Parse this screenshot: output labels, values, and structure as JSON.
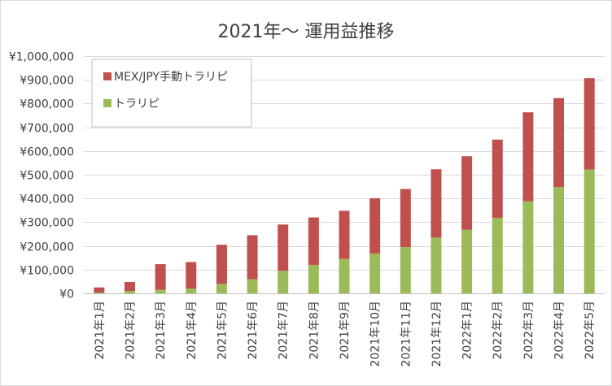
{
  "chart_data": {
    "type": "bar",
    "stacked": true,
    "title": "2021年～ 運用益推移",
    "xlabel": "",
    "ylabel": "",
    "ylim": [
      0,
      1000000
    ],
    "y_ticks": [
      0,
      100000,
      200000,
      300000,
      400000,
      500000,
      600000,
      700000,
      800000,
      900000,
      1000000
    ],
    "y_tick_labels": [
      "¥0",
      "¥100,000",
      "¥200,000",
      "¥300,000",
      "¥400,000",
      "¥500,000",
      "¥600,000",
      "¥700,000",
      "¥800,000",
      "¥900,000",
      "¥1,000,000"
    ],
    "categories": [
      "2021年1月",
      "2021年2月",
      "2021年3月",
      "2021年4月",
      "2021年5月",
      "2021年6月",
      "2021年7月",
      "2021年8月",
      "2021年9月",
      "2021年10月",
      "2021年11月",
      "2021年12月",
      "2022年1月",
      "2022年2月",
      "2022年3月",
      "2022年4月",
      "2022年5月"
    ],
    "series": [
      {
        "name": "トラリピ",
        "color": "#9bbb59",
        "values": [
          3000,
          10000,
          15000,
          20000,
          40000,
          60000,
          95000,
          120000,
          145000,
          168000,
          195000,
          235000,
          268000,
          318000,
          388000,
          448000,
          522000
        ]
      },
      {
        "name": "MEX/JPY手動トラリピ",
        "color": "#c0504d",
        "values": [
          22000,
          38000,
          108000,
          112000,
          165000,
          185000,
          195000,
          200000,
          203000,
          233000,
          245000,
          288000,
          310000,
          330000,
          375000,
          375000,
          385000
        ]
      }
    ],
    "legend": {
      "position": "top-left",
      "entries": [
        "MEX/JPY手動トラリピ",
        "トラリピ"
      ]
    },
    "grid": true
  }
}
